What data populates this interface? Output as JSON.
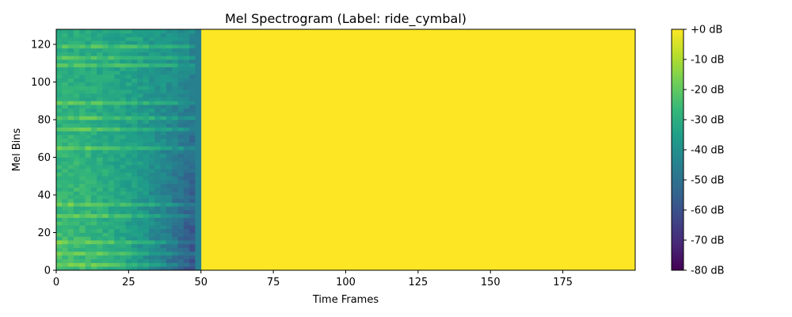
{
  "chart_data": {
    "type": "heatmap",
    "title": "Mel Spectrogram (Label: ride_cymbal)",
    "xlabel": "Time Frames",
    "ylabel": "Mel Bins",
    "xlim": [
      0,
      200
    ],
    "ylim": [
      0,
      128
    ],
    "x_ticks": [
      0,
      25,
      50,
      75,
      100,
      125,
      150,
      175
    ],
    "y_ticks": [
      0,
      20,
      40,
      60,
      80,
      100,
      120
    ],
    "colorbar": {
      "range": [
        -80,
        0
      ],
      "ticks": [
        0,
        -10,
        -20,
        -30,
        -40,
        -50,
        -60,
        -70,
        -80
      ],
      "tick_labels": [
        "+0 dB",
        "-10 dB",
        "-20 dB",
        "-30 dB",
        "-40 dB",
        "-50 dB",
        "-60 dB",
        "-70 dB",
        "-80 dB"
      ],
      "colormap": "viridis"
    },
    "regions": [
      {
        "name": "signal",
        "frames": [
          0,
          50
        ],
        "db_low_bins": -25,
        "db_high_bins_end_of_signal": -75
      },
      {
        "name": "padding",
        "frames": [
          50,
          200
        ],
        "db": 0
      }
    ],
    "bright_bins": [
      2,
      8,
      15,
      28,
      34,
      64,
      74,
      80,
      88,
      108,
      112,
      119
    ],
    "grid": false
  },
  "colors": {
    "viridis": [
      "#440154",
      "#482878",
      "#3e4989",
      "#31688e",
      "#26828e",
      "#1f9e89",
      "#35b779",
      "#6ece58",
      "#b5de2b",
      "#fde725"
    ]
  }
}
